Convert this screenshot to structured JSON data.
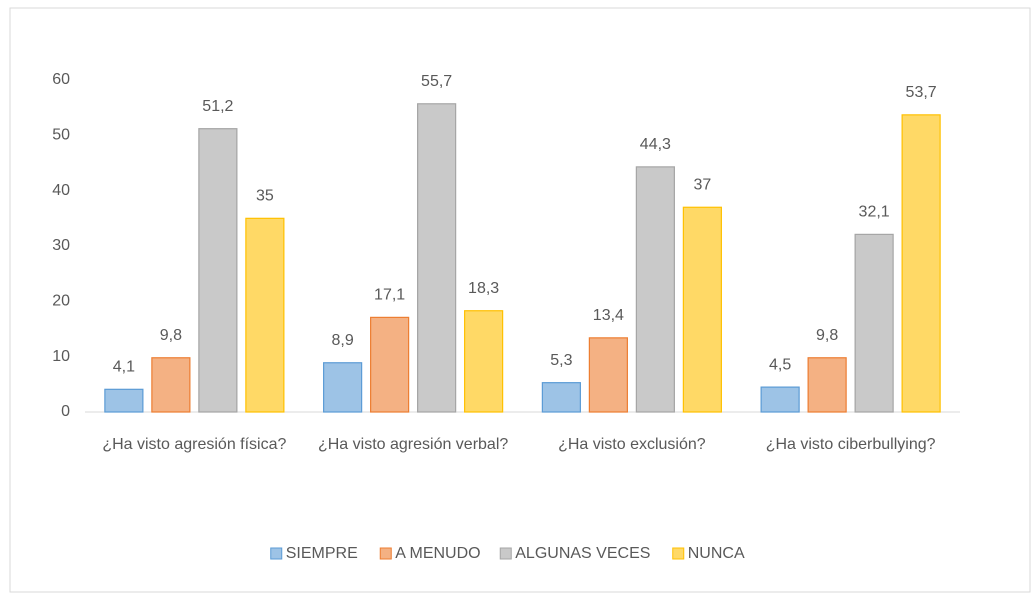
{
  "chart_data": {
    "type": "bar",
    "categories": [
      "¿Ha visto agresión física?",
      "¿Ha visto agresión verbal?",
      "¿Ha visto exclusión?",
      "¿Ha visto ciberbullying?"
    ],
    "series": [
      {
        "name": "SIEMPRE",
        "color": "#5b9bd5",
        "values": [
          4.1,
          8.9,
          5.3,
          4.5
        ],
        "value_labels": [
          "4,1",
          "8,9",
          "5,3",
          "4,5"
        ]
      },
      {
        "name": "A MENUDO",
        "color": "#ed7d31",
        "values": [
          9.8,
          17.1,
          13.4,
          9.8
        ],
        "value_labels": [
          "9,8",
          "17,1",
          "13,4",
          "9,8"
        ]
      },
      {
        "name": "ALGUNAS VECES",
        "color": "#a5a5a5",
        "values": [
          51.2,
          55.7,
          44.3,
          32.1
        ],
        "value_labels": [
          "51,2",
          "55,7",
          "44,3",
          "32,1"
        ]
      },
      {
        "name": "NUNCA",
        "color": "#ffc000",
        "values": [
          35,
          18.3,
          37,
          53.7
        ],
        "value_labels": [
          "35",
          "18,3",
          "37",
          "53,7"
        ]
      }
    ],
    "ylim": [
      0,
      60
    ],
    "yticks": [
      0,
      10,
      20,
      30,
      40,
      50,
      60
    ],
    "grid": false,
    "legend": "bottom"
  }
}
